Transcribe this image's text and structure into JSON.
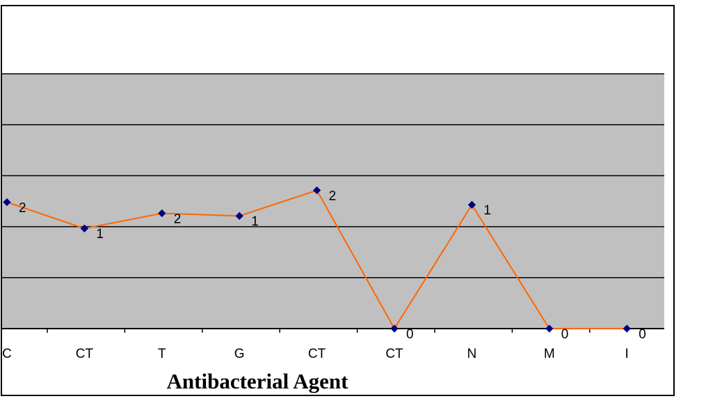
{
  "chart_data": {
    "type": "line",
    "xlabel": "Antibacterial Agent",
    "categories": [
      "C",
      "CT",
      "T",
      "G",
      "CT",
      "CT",
      "N",
      "M",
      "I"
    ],
    "series": [
      {
        "values": [
          2,
          1,
          2,
          1,
          2,
          0,
          1,
          0,
          0
        ]
      }
    ],
    "data_labels": [
      "2",
      "1",
      "2",
      "1",
      "2",
      "0",
      "1",
      "0",
      "0"
    ],
    "grid": true,
    "colors": {
      "line": "#ff6600",
      "marker": "#000080",
      "plot_bg": "#c0c0c0",
      "gridline": "#000000"
    }
  }
}
